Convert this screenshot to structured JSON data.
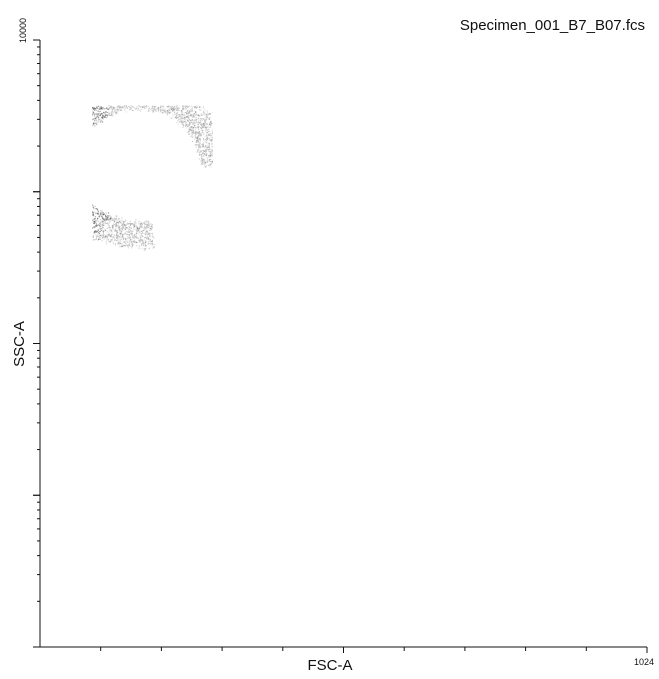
{
  "chart_data": {
    "type": "scatter",
    "title": "Specimen_001_B7_B07.fcs",
    "xlabel": "FSC-A",
    "ylabel": "SSC-A",
    "x_scale": "linear",
    "y_scale": "log",
    "xlim": [
      0,
      1024
    ],
    "ylim": [
      1,
      10000
    ],
    "x_tick_labels": [
      "",
      "1024"
    ],
    "y_tick_labels": [
      "10000"
    ],
    "grid": false,
    "legend": "none",
    "colors": {
      "axis": "#111111",
      "points_dense": "#3a3a3a",
      "points_sparse": "#8a8a8a"
    },
    "population": {
      "shape": "crescent",
      "center_fsc": 170,
      "center_ssc": 1500,
      "fsc_range": [
        75,
        290
      ],
      "ssc_range": [
        450,
        4800
      ],
      "note_dense_edge": "left"
    }
  }
}
